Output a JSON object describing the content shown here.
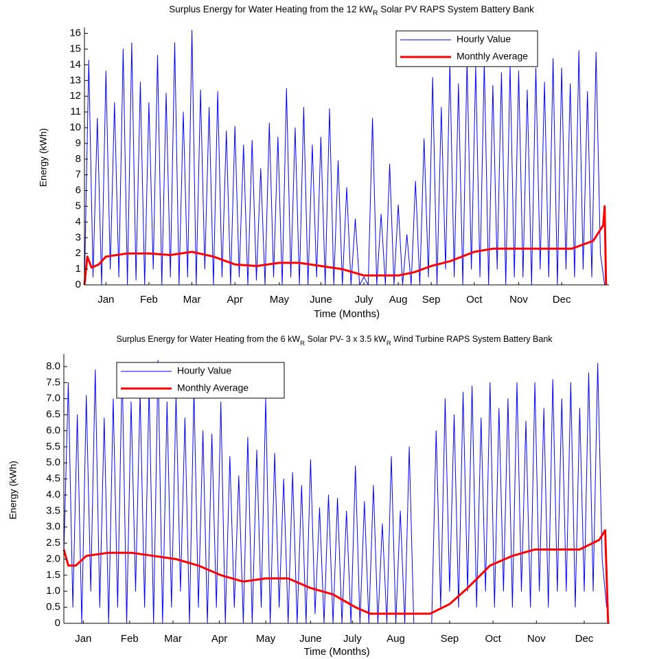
{
  "chart_data": [
    {
      "type": "line",
      "title": [
        "Surplus Energy for Water Heating from the 12 kW",
        "R",
        " Solar PV RAPS System Battery Bank"
      ],
      "xlabel": "Time (Months)",
      "ylabel": "Energy (kWh)",
      "xlim": [
        0,
        366
      ],
      "xticks": [
        {
          "value": 15,
          "label": "Jan"
        },
        {
          "value": 45,
          "label": "Feb"
        },
        {
          "value": 75,
          "label": "Mar"
        },
        {
          "value": 105,
          "label": "Apr"
        },
        {
          "value": 136,
          "label": "May"
        },
        {
          "value": 165,
          "label": "June"
        },
        {
          "value": 195,
          "label": "July"
        },
        {
          "value": 219,
          "label": "Aug"
        },
        {
          "value": 242,
          "label": "Sep"
        },
        {
          "value": 272,
          "label": "Oct"
        },
        {
          "value": 303,
          "label": "Nov"
        },
        {
          "value": 333,
          "label": "Dec"
        }
      ],
      "ylim": [
        0,
        16.2
      ],
      "yticks": [
        0,
        1,
        2,
        3,
        4,
        5,
        6,
        7,
        8,
        9,
        10,
        11,
        12,
        13,
        14,
        15,
        16
      ],
      "legend": "upper right",
      "series": [
        {
          "name": "Hourly Value",
          "color": "#0000ff",
          "x": [
            0,
            3,
            6,
            9,
            12,
            15,
            18,
            21,
            24,
            27,
            30,
            33,
            36,
            39,
            42,
            45,
            48,
            51,
            54,
            57,
            60,
            63,
            66,
            69,
            72,
            75,
            78,
            81,
            84,
            87,
            90,
            93,
            96,
            99,
            102,
            105,
            108,
            111,
            114,
            117,
            120,
            123,
            126,
            129,
            132,
            135,
            138,
            141,
            144,
            147,
            150,
            153,
            156,
            159,
            162,
            165,
            168,
            171,
            174,
            177,
            180,
            183,
            186,
            189,
            192,
            195,
            198,
            201,
            204,
            207,
            210,
            213,
            216,
            219,
            222,
            225,
            228,
            231,
            234,
            237,
            240,
            243,
            246,
            249,
            252,
            255,
            258,
            261,
            264,
            267,
            270,
            273,
            276,
            279,
            282,
            285,
            288,
            291,
            294,
            297,
            300,
            303,
            306,
            309,
            312,
            315,
            318,
            321,
            324,
            327,
            330,
            333,
            336,
            339,
            342,
            345,
            348,
            351,
            354,
            357,
            360,
            363
          ],
          "values": [
            0,
            14.3,
            0.5,
            10.6,
            0,
            13.6,
            1,
            11.6,
            0.5,
            15.0,
            0,
            15.4,
            0.3,
            12.9,
            0,
            11.6,
            1,
            14.6,
            0,
            12.2,
            0.5,
            15.4,
            0,
            11,
            0.5,
            16.2,
            0,
            12.4,
            1,
            11.3,
            0,
            12.3,
            0.5,
            9.8,
            0,
            10.1,
            0.5,
            8.9,
            0,
            9.2,
            0.3,
            7.4,
            0,
            10.3,
            0.5,
            9.4,
            0,
            12.5,
            0.5,
            10,
            0,
            11.3,
            0,
            8.9,
            0.5,
            9.4,
            0,
            11.2,
            0,
            7.9,
            0,
            6.2,
            0,
            4.2,
            0,
            0.5,
            0,
            10.6,
            0,
            4.5,
            0,
            7.7,
            0,
            5.1,
            0,
            3.2,
            0,
            6.6,
            0,
            9.3,
            0.5,
            13.2,
            0,
            11.3,
            1,
            14.1,
            0.5,
            12.8,
            0,
            14.3,
            1,
            13.9,
            0.5,
            14.2,
            0,
            12.7,
            1,
            13.5,
            0,
            14,
            0.5,
            13.6,
            0.5,
            12.4,
            0,
            13.8,
            1,
            12.9,
            0.5,
            14.4,
            0,
            13.8,
            1,
            12.8,
            0.5,
            14.9,
            1,
            12.3,
            0.5,
            14.8,
            2,
            0
          ]
        },
        {
          "name": "Monthly Average",
          "color": "#ff0000",
          "x": [
            0,
            2,
            5,
            10,
            15,
            30,
            45,
            60,
            75,
            90,
            105,
            120,
            136,
            150,
            165,
            180,
            195,
            210,
            219,
            230,
            242,
            255,
            272,
            285,
            303,
            320,
            340,
            355,
            362,
            363,
            364
          ],
          "values": [
            0,
            1.8,
            1.1,
            1.3,
            1.8,
            2.0,
            2.0,
            1.9,
            2.1,
            1.8,
            1.3,
            1.2,
            1.4,
            1.4,
            1.2,
            1.0,
            0.6,
            0.6,
            0.6,
            0.8,
            1.2,
            1.5,
            2.1,
            2.3,
            2.3,
            2.3,
            2.3,
            2.8,
            3.8,
            5.0,
            0
          ]
        }
      ]
    },
    {
      "type": "line",
      "title": [
        "Surplus Energy for Water Heating from the 6 kW",
        "R",
        " Solar PV- 3 x 3.5 kW",
        "R",
        " Wind Turbine  RAPS System Battery Bank"
      ],
      "xlabel": "Time (Months)",
      "ylabel": "Energy (kWh)",
      "xlim": [
        0,
        365
      ],
      "xticks": [
        {
          "value": 13,
          "label": "Jan"
        },
        {
          "value": 44,
          "label": "Feb"
        },
        {
          "value": 73,
          "label": "Mar"
        },
        {
          "value": 104,
          "label": "Apr"
        },
        {
          "value": 135,
          "label": "May"
        },
        {
          "value": 165,
          "label": "June"
        },
        {
          "value": 193,
          "label": "July"
        },
        {
          "value": 222,
          "label": "Aug"
        },
        {
          "value": 258,
          "label": "Sep"
        },
        {
          "value": 287,
          "label": "Oct"
        },
        {
          "value": 316,
          "label": "Nov"
        },
        {
          "value": 348,
          "label": "Dec"
        }
      ],
      "ylim": [
        0,
        8.3
      ],
      "yticks": [
        0,
        0.5,
        {
          "value": 1,
          "label": "1.0"
        },
        1.5,
        {
          "value": 2,
          "label": "2.0"
        },
        2.5,
        {
          "value": 3,
          "label": "3.0"
        },
        3.5,
        {
          "value": 4,
          "label": "4.0"
        },
        4.5,
        {
          "value": 5,
          "label": "5.0"
        },
        5.5,
        {
          "value": 6,
          "label": "6.0"
        },
        6.5,
        {
          "value": 7,
          "label": "7.0"
        },
        7.5,
        {
          "value": 8,
          "label": "8.0"
        }
      ],
      "legend": "upper left",
      "series": [
        {
          "name": "Hourly Value",
          "color": "#0000ff",
          "x": [
            0,
            3,
            6,
            9,
            12,
            15,
            18,
            21,
            24,
            27,
            30,
            33,
            36,
            39,
            42,
            45,
            48,
            51,
            54,
            57,
            60,
            63,
            66,
            69,
            72,
            75,
            78,
            81,
            84,
            87,
            90,
            93,
            96,
            99,
            102,
            105,
            108,
            111,
            114,
            117,
            120,
            123,
            126,
            129,
            132,
            135,
            138,
            141,
            144,
            147,
            150,
            153,
            156,
            159,
            162,
            165,
            168,
            171,
            174,
            177,
            180,
            183,
            186,
            189,
            192,
            195,
            198,
            201,
            204,
            207,
            210,
            213,
            216,
            219,
            222,
            225,
            228,
            231,
            234,
            237,
            240,
            243,
            246,
            249,
            252,
            255,
            258,
            261,
            264,
            267,
            270,
            273,
            276,
            279,
            282,
            285,
            288,
            291,
            294,
            297,
            300,
            303,
            306,
            309,
            312,
            315,
            318,
            321,
            324,
            327,
            330,
            333,
            336,
            339,
            342,
            345,
            348,
            351,
            354,
            357,
            360,
            363
          ],
          "values": [
            2.2,
            7.5,
            0.5,
            6.5,
            0,
            7.1,
            1,
            7.9,
            0.5,
            6.4,
            0,
            7.0,
            0.5,
            8.0,
            0,
            6.9,
            1,
            7.2,
            0.5,
            7.4,
            0,
            8.2,
            0,
            6.9,
            0.5,
            7.1,
            1,
            6.4,
            0,
            7.3,
            0.5,
            6.0,
            0,
            5.9,
            0.5,
            6.9,
            0,
            5.2,
            0.5,
            4.6,
            0,
            5.8,
            0,
            5.4,
            0.5,
            7.0,
            0,
            5.3,
            0.5,
            4.5,
            0,
            4.7,
            0,
            4.3,
            0,
            5.1,
            0.3,
            3.6,
            0,
            4.0,
            0,
            3.9,
            0,
            3.5,
            0,
            4.9,
            0,
            3.8,
            0,
            4.3,
            0,
            3.1,
            0,
            5.2,
            0,
            3.5,
            0,
            5.5,
            0,
            0,
            0,
            0,
            0,
            6.0,
            0.5,
            7.0,
            1,
            6.5,
            0.5,
            7.2,
            1,
            7.4,
            0.5,
            6.4,
            1,
            7.5,
            0.5,
            6.7,
            1,
            7.0,
            0.5,
            7.5,
            1,
            6.3,
            0.5,
            7.5,
            1,
            6.7,
            0.5,
            7.6,
            1,
            7.0,
            1,
            7.5,
            0.5,
            6.7,
            1,
            7.8,
            1,
            8.1,
            2,
            0.5
          ]
        },
        {
          "name": "Monthly Average",
          "color": "#ff0000",
          "x": [
            0,
            3,
            8,
            15,
            30,
            45,
            60,
            75,
            90,
            105,
            120,
            135,
            150,
            165,
            180,
            195,
            205,
            220,
            235,
            245,
            258,
            270,
            285,
            300,
            315,
            330,
            345,
            358,
            362,
            364
          ],
          "values": [
            2.3,
            1.8,
            1.8,
            2.1,
            2.2,
            2.2,
            2.1,
            2.0,
            1.8,
            1.5,
            1.3,
            1.4,
            1.4,
            1.1,
            0.9,
            0.5,
            0.3,
            0.3,
            0.3,
            0.3,
            0.6,
            1.1,
            1.8,
            2.1,
            2.3,
            2.3,
            2.3,
            2.6,
            2.9,
            0
          ]
        }
      ]
    }
  ]
}
